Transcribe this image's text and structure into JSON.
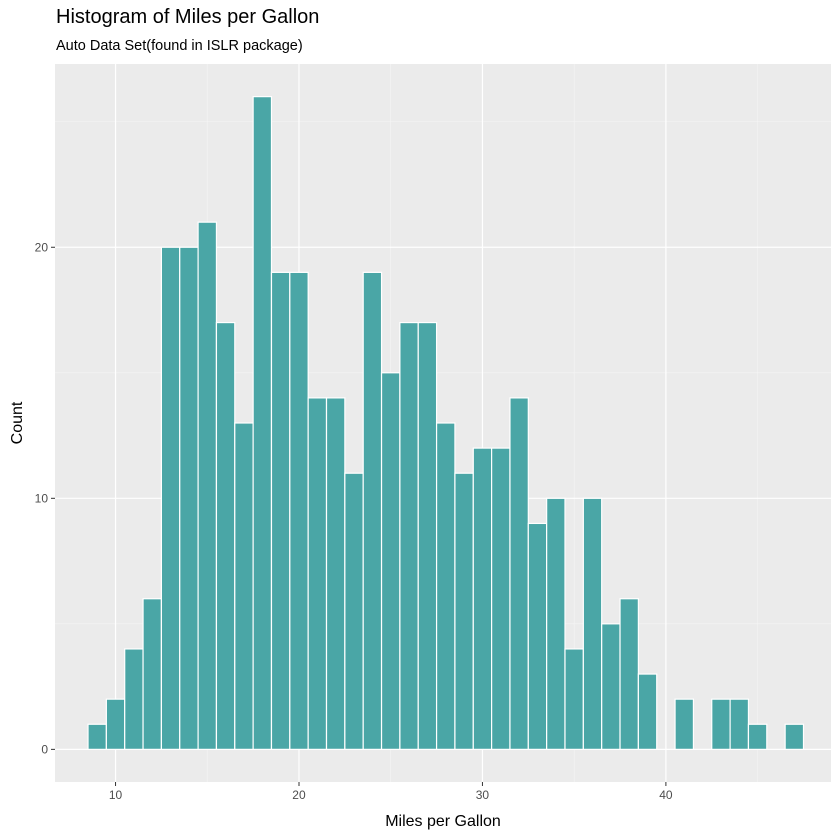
{
  "chart_data": {
    "type": "bar",
    "title": "Histogram of Miles per Gallon",
    "subtitle": "Auto Data Set(found in ISLR package)",
    "xlabel": "Miles per Gallon",
    "ylabel": "Count",
    "xlim": [
      6.7,
      49.0
    ],
    "ylim": [
      -1.3,
      27.3
    ],
    "x_ticks": [
      10,
      20,
      30,
      40
    ],
    "x_tick_labels": [
      "10",
      "20",
      "30",
      "40"
    ],
    "y_ticks": [
      0,
      10,
      20
    ],
    "y_tick_labels": [
      "0",
      "10",
      "20"
    ],
    "grid": true,
    "bar_color": "#4aa6a6",
    "bar_outline": "#ffffff",
    "panel_background": "#ebebeb",
    "bin_width": 1.0,
    "bins": [
      {
        "center": 9.0,
        "count": 1
      },
      {
        "center": 10.0,
        "count": 2
      },
      {
        "center": 11.0,
        "count": 4
      },
      {
        "center": 12.0,
        "count": 6
      },
      {
        "center": 13.0,
        "count": 20
      },
      {
        "center": 14.0,
        "count": 20
      },
      {
        "center": 15.0,
        "count": 21
      },
      {
        "center": 16.0,
        "count": 17
      },
      {
        "center": 17.0,
        "count": 13
      },
      {
        "center": 18.0,
        "count": 26
      },
      {
        "center": 19.0,
        "count": 19
      },
      {
        "center": 20.0,
        "count": 19
      },
      {
        "center": 21.0,
        "count": 14
      },
      {
        "center": 22.0,
        "count": 14
      },
      {
        "center": 23.0,
        "count": 11
      },
      {
        "center": 24.0,
        "count": 19
      },
      {
        "center": 25.0,
        "count": 15
      },
      {
        "center": 26.0,
        "count": 17
      },
      {
        "center": 27.0,
        "count": 17
      },
      {
        "center": 28.0,
        "count": 13
      },
      {
        "center": 29.0,
        "count": 11
      },
      {
        "center": 30.0,
        "count": 12
      },
      {
        "center": 31.0,
        "count": 12
      },
      {
        "center": 32.0,
        "count": 14
      },
      {
        "center": 33.0,
        "count": 9
      },
      {
        "center": 34.0,
        "count": 10
      },
      {
        "center": 35.0,
        "count": 4
      },
      {
        "center": 36.0,
        "count": 10
      },
      {
        "center": 37.0,
        "count": 5
      },
      {
        "center": 38.0,
        "count": 6
      },
      {
        "center": 39.0,
        "count": 3
      },
      {
        "center": 41.0,
        "count": 2
      },
      {
        "center": 43.0,
        "count": 2
      },
      {
        "center": 44.0,
        "count": 2
      },
      {
        "center": 45.0,
        "count": 1
      },
      {
        "center": 47.0,
        "count": 1
      }
    ]
  }
}
